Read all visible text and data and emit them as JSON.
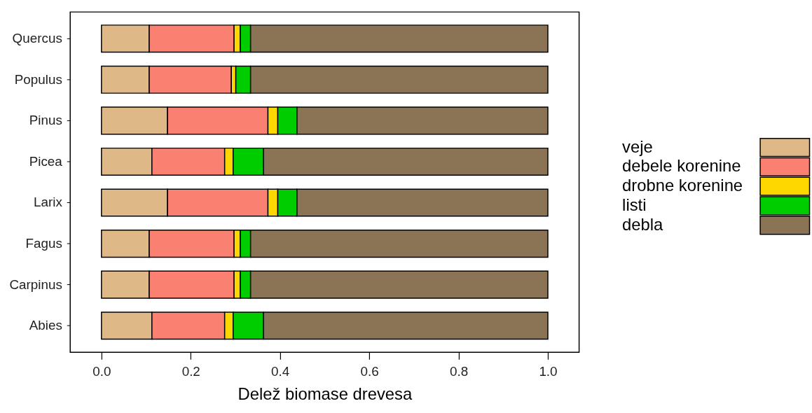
{
  "chart_data": {
    "type": "bar",
    "orientation": "horizontal",
    "stacked": true,
    "xlabel": "Delež biomase drevesa",
    "categories": [
      "Quercus",
      "Populus",
      "Pinus",
      "Picea",
      "Larix",
      "Fagus",
      "Carpinus",
      "Abies"
    ],
    "series": [
      {
        "name": "veje",
        "color": "#deb887",
        "values": [
          0.107,
          0.107,
          0.148,
          0.113,
          0.148,
          0.107,
          0.107,
          0.113
        ]
      },
      {
        "name": "debele korenine",
        "color": "#fa8072",
        "values": [
          0.19,
          0.184,
          0.225,
          0.163,
          0.225,
          0.19,
          0.19,
          0.163
        ]
      },
      {
        "name": "drobne korenine",
        "color": "#ffd700",
        "values": [
          0.014,
          0.01,
          0.022,
          0.019,
          0.022,
          0.014,
          0.014,
          0.019
        ]
      },
      {
        "name": "listi",
        "color": "#00cd00",
        "values": [
          0.023,
          0.033,
          0.043,
          0.068,
          0.043,
          0.023,
          0.023,
          0.068
        ]
      },
      {
        "name": "debla",
        "color": "#8b7355",
        "values": [
          0.666,
          0.666,
          0.562,
          0.637,
          0.562,
          0.666,
          0.666,
          0.637
        ]
      }
    ],
    "xlim": [
      -0.07,
      1.07
    ],
    "xticks": [
      {
        "value": 0,
        "label": "0.0"
      },
      0.2,
      0.4,
      0.6,
      0.8,
      {
        "value": 1,
        "label": "1.0"
      }
    ],
    "legend": "right"
  }
}
